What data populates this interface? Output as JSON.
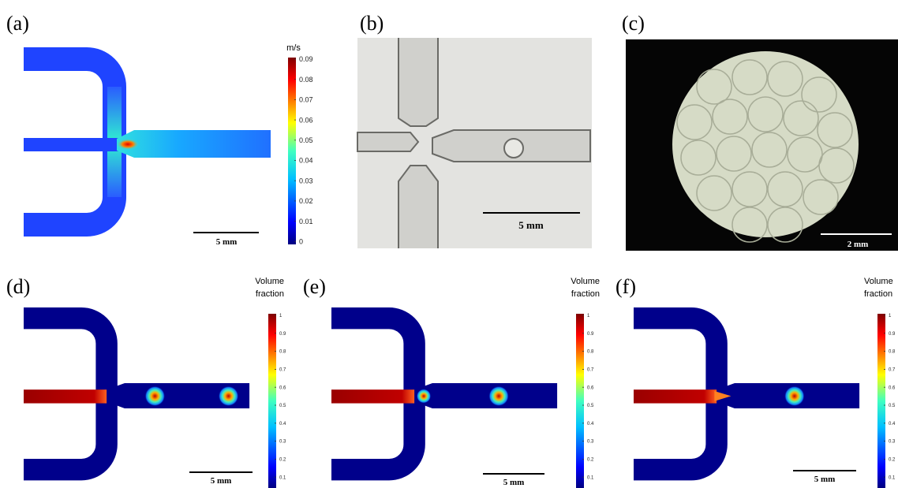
{
  "panels": [
    {
      "label": "(a)",
      "colorbar": {
        "title_lines": [
          "m/s"
        ],
        "ticks": [
          0.09,
          0.08,
          0.07,
          0.06,
          0.05,
          0.04,
          0.03,
          0.02,
          0.01,
          0
        ]
      },
      "scale_bar": "5 mm"
    },
    {
      "label": "(b)",
      "scale_bar": "5 mm"
    },
    {
      "label": "(c)",
      "scale_bar": "2 mm"
    },
    {
      "label": "(d)",
      "colorbar": {
        "title_lines": [
          "Volume",
          "fraction"
        ],
        "ticks": [
          1,
          0.9,
          0.8,
          0.7,
          0.6,
          0.5,
          0.4,
          0.3,
          0.2,
          0.1
        ]
      },
      "scale_bar": "5 mm"
    },
    {
      "label": "(e)",
      "colorbar": {
        "title_lines": [
          "Volume",
          "fraction"
        ],
        "ticks": [
          1,
          0.9,
          0.8,
          0.7,
          0.6,
          0.5,
          0.4,
          0.3,
          0.2,
          0.1
        ]
      },
      "scale_bar": "5 mm"
    },
    {
      "label": "(f)",
      "colorbar": {
        "title_lines": [
          "Volume",
          "fraction"
        ],
        "ticks": [
          1,
          0.9,
          0.8,
          0.7,
          0.6,
          0.5,
          0.4,
          0.3,
          0.2,
          0.1
        ]
      },
      "scale_bar": "5 mm"
    }
  ]
}
